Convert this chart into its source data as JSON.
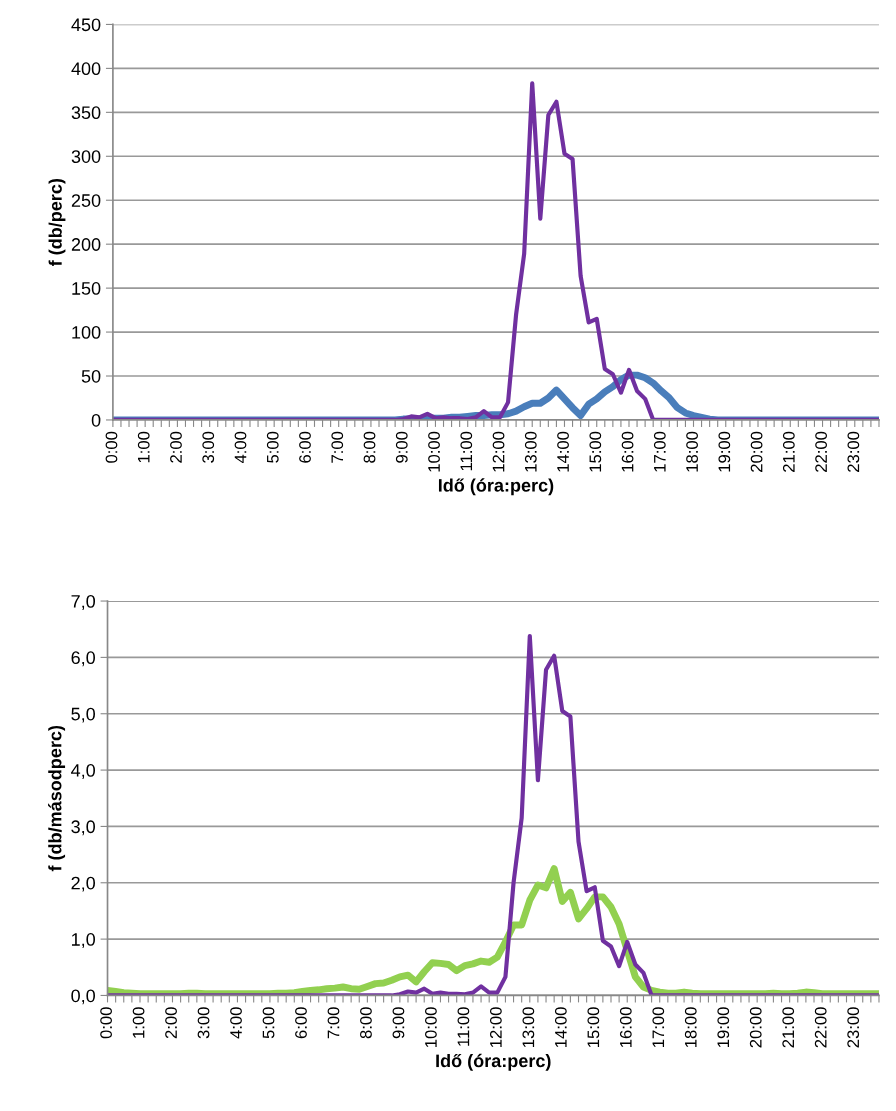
{
  "chart_data": [
    {
      "type": "line",
      "xlabel": "Idő (óra:perc)",
      "ylabel": "f (db/perc)",
      "categories": [
        "0:00",
        null,
        null,
        null,
        "1:00",
        null,
        null,
        null,
        "2:00",
        null,
        null,
        null,
        "3:00",
        null,
        null,
        null,
        "4:00",
        null,
        null,
        null,
        "5:00",
        null,
        null,
        null,
        "6:00",
        null,
        null,
        null,
        "7:00",
        null,
        null,
        null,
        "8:00",
        null,
        null,
        null,
        "9:00",
        null,
        null,
        null,
        "10:00",
        null,
        null,
        null,
        "11:00",
        null,
        null,
        null,
        "12:00",
        null,
        null,
        null,
        "13:00",
        null,
        null,
        null,
        "14:00",
        null,
        null,
        null,
        "15:00",
        null,
        null,
        null,
        "16:00",
        null,
        null,
        null,
        "17:00",
        null,
        null,
        null,
        "18:00",
        null,
        null,
        null,
        "19:00",
        null,
        null,
        null,
        "20:00",
        null,
        null,
        null,
        "21:00",
        null,
        null,
        null,
        "22:00",
        null,
        null,
        null,
        "23:00",
        null,
        null,
        null
      ],
      "series": [
        {
          "color": "#4a7ebb",
          "values": [
            0,
            0,
            0,
            0,
            0,
            0,
            0,
            0,
            0,
            0,
            0,
            0,
            0,
            0,
            0,
            0,
            0,
            0,
            0,
            0,
            0,
            0,
            0,
            0,
            0,
            0,
            0,
            0,
            0,
            0,
            0,
            0,
            0,
            0,
            0,
            0,
            1,
            1,
            1,
            2,
            2,
            2,
            3,
            3,
            4,
            5,
            5,
            6,
            6,
            7,
            10,
            15,
            19,
            19,
            25,
            34,
            24,
            14,
            5,
            18,
            24,
            32,
            38,
            46,
            51,
            51,
            48,
            42,
            33,
            25,
            14,
            8,
            5,
            3,
            1,
            0,
            0,
            0,
            0,
            0,
            0,
            0,
            0,
            0,
            0,
            0,
            0,
            0,
            0,
            0,
            0,
            0,
            0,
            0,
            0,
            0
          ]
        },
        {
          "color": "#7030a0",
          "values": [
            0,
            0,
            0,
            0,
            0,
            0,
            0,
            0,
            0,
            0,
            0,
            0,
            0,
            0,
            0,
            0,
            0,
            0,
            0,
            0,
            0,
            0,
            0,
            0,
            0,
            0,
            0,
            0,
            0,
            0,
            0,
            0,
            0,
            0,
            0,
            0,
            1,
            4,
            3,
            7,
            2,
            3,
            2,
            2,
            1,
            3,
            10,
            3,
            3,
            20,
            120,
            189,
            383,
            229,
            347,
            362,
            303,
            297,
            164,
            111,
            115,
            58,
            52,
            31,
            57,
            33,
            24,
            0,
            0,
            0,
            0,
            0,
            0,
            0,
            0,
            0,
            0,
            0,
            0,
            0,
            0,
            0,
            0,
            0,
            0,
            0,
            0,
            0,
            0,
            0,
            0,
            0,
            0,
            0,
            0,
            0
          ]
        }
      ],
      "ylim": [
        0,
        450
      ],
      "yticks": [
        0,
        50,
        100,
        150,
        200,
        250,
        300,
        350,
        400,
        450
      ],
      "grid": "y",
      "marker": "none",
      "line_style": "solid"
    },
    {
      "type": "line",
      "xlabel": "Idő (óra:perc)",
      "ylabel": "f (db/másodperc)",
      "categories": [
        "0:00",
        null,
        null,
        null,
        "1:00",
        null,
        null,
        null,
        "2:00",
        null,
        null,
        null,
        "3:00",
        null,
        null,
        null,
        "4:00",
        null,
        null,
        null,
        "5:00",
        null,
        null,
        null,
        "6:00",
        null,
        null,
        null,
        "7:00",
        null,
        null,
        null,
        "8:00",
        null,
        null,
        null,
        "9:00",
        null,
        null,
        null,
        "10:00",
        null,
        null,
        null,
        "11:00",
        null,
        null,
        null,
        "12:00",
        null,
        null,
        null,
        "13:00",
        null,
        null,
        null,
        "14:00",
        null,
        null,
        null,
        "15:00",
        null,
        null,
        null,
        "16:00",
        null,
        null,
        null,
        "17:00",
        null,
        null,
        null,
        "18:00",
        null,
        null,
        null,
        "19:00",
        null,
        null,
        null,
        "20:00",
        null,
        null,
        null,
        "21:00",
        null,
        null,
        null,
        "22:00",
        null,
        null,
        null,
        "23:00",
        null,
        null,
        null
      ],
      "series": [
        {
          "color": "#92d050",
          "values": [
            0.09,
            0.07,
            0.05,
            0.04,
            0.03,
            0.03,
            0.03,
            0.03,
            0.03,
            0.03,
            0.04,
            0.04,
            0.03,
            0.03,
            0.03,
            0.03,
            0.03,
            0.03,
            0.03,
            0.03,
            0.03,
            0.04,
            0.04,
            0.05,
            0.07,
            0.09,
            0.1,
            0.12,
            0.13,
            0.15,
            0.12,
            0.11,
            0.16,
            0.21,
            0.22,
            0.27,
            0.33,
            0.36,
            0.24,
            0.42,
            0.58,
            0.57,
            0.55,
            0.44,
            0.53,
            0.56,
            0.61,
            0.59,
            0.68,
            0.95,
            1.25,
            1.25,
            1.69,
            1.96,
            1.91,
            2.25,
            1.67,
            1.83,
            1.36,
            1.54,
            1.75,
            1.75,
            1.57,
            1.27,
            0.8,
            0.33,
            0.15,
            0.09,
            0.06,
            0.04,
            0.04,
            0.06,
            0.04,
            0.03,
            0.03,
            0.03,
            0.03,
            0.03,
            0.03,
            0.03,
            0.03,
            0.03,
            0.04,
            0.03,
            0.03,
            0.04,
            0.06,
            0.05,
            0.03,
            0.03,
            0.03,
            0.03,
            0.03,
            0.03,
            0.03,
            0.03
          ]
        },
        {
          "color": "#7030a0",
          "values": [
            0,
            0,
            0,
            0,
            0,
            0,
            0,
            0,
            0,
            0,
            0,
            0,
            0,
            0,
            0,
            0,
            0,
            0,
            0,
            0,
            0,
            0,
            0,
            0,
            0,
            0,
            0,
            0,
            0,
            0,
            0,
            0,
            0,
            0,
            0,
            0,
            0.02,
            0.07,
            0.05,
            0.12,
            0.03,
            0.05,
            0.03,
            0.03,
            0.02,
            0.05,
            0.16,
            0.05,
            0.05,
            0.33,
            2.0,
            3.15,
            6.38,
            3.82,
            5.78,
            6.03,
            5.05,
            4.95,
            2.73,
            1.85,
            1.92,
            0.97,
            0.87,
            0.52,
            0.95,
            0.55,
            0.4,
            0,
            0,
            0,
            0,
            0,
            0,
            0,
            0,
            0,
            0,
            0,
            0,
            0,
            0,
            0,
            0,
            0,
            0,
            0,
            0,
            0,
            0,
            0,
            0,
            0,
            0,
            0,
            0,
            0
          ]
        }
      ],
      "ylim": [
        0,
        7
      ],
      "yticks": [
        {
          "value": 0,
          "label": "0,0"
        },
        {
          "value": 1,
          "label": "1,0"
        },
        {
          "value": 2,
          "label": "2,0"
        },
        {
          "value": 3,
          "label": "3,0"
        },
        {
          "value": 4,
          "label": "4,0"
        },
        {
          "value": 5,
          "label": "5,0"
        },
        {
          "value": 6,
          "label": "6,0"
        },
        {
          "value": 7,
          "label": "7,0"
        }
      ],
      "grid": "y",
      "marker": "none",
      "line_style": "solid"
    }
  ]
}
